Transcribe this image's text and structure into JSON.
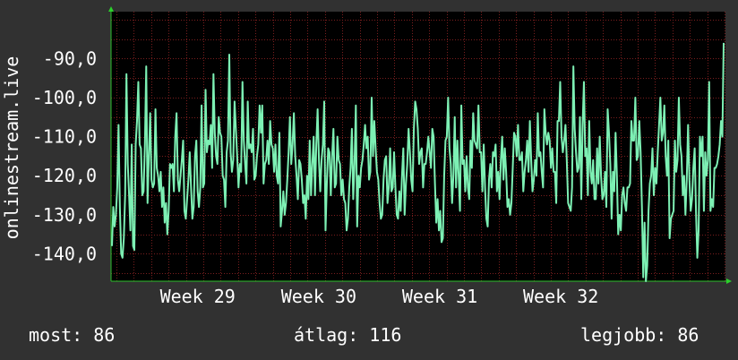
{
  "chart_data": {
    "type": "line",
    "ylabel": "onlinestream.live",
    "ylim": [
      -147,
      -78
    ],
    "yticks": [
      -90,
      -100,
      -110,
      -120,
      -130,
      -140
    ],
    "ytick_labels": [
      "-90,0",
      "-100,0",
      "-110,0",
      "-120,0",
      "-130,0",
      "-140,0"
    ],
    "xlim": [
      0,
      100
    ],
    "xticks": [
      {
        "x": 14.1,
        "label": "Week 29"
      },
      {
        "x": 33.8,
        "label": "Week 30"
      },
      {
        "x": 53.5,
        "label": "Week 31"
      },
      {
        "x": 73.2,
        "label": "Week 32"
      }
    ],
    "grid": true,
    "series": [
      {
        "color": "#7df0b4",
        "values": [
          -138,
          -128,
          -133,
          -130,
          -123,
          -107,
          -128,
          -140,
          -141,
          -136,
          -125,
          -94,
          -117,
          -125,
          -134,
          -112,
          -138,
          -139,
          -112,
          -106,
          -96,
          -112,
          -113,
          -125,
          -124,
          -112,
          -92,
          -127,
          -115,
          -104,
          -121,
          -123,
          -122,
          -103,
          -118,
          -120,
          -124,
          -119,
          -128,
          -123,
          -132,
          -127,
          -135,
          -129,
          -117,
          -118,
          -117,
          -124,
          -110,
          -104,
          -121,
          -124,
          -120,
          -116,
          -111,
          -129,
          -131,
          -126,
          -121,
          -114,
          -123,
          -131,
          -128,
          -115,
          -111,
          -124,
          -128,
          -123,
          -102,
          -123,
          -122,
          -98,
          -114,
          -111,
          -112,
          -107,
          -118,
          -94,
          -109,
          -115,
          -117,
          -105,
          -109,
          -110,
          -120,
          -121,
          -128,
          -114,
          -111,
          -89,
          -114,
          -119,
          -116,
          -101,
          -108,
          -115,
          -123,
          -117,
          -119,
          -96,
          -111,
          -117,
          -122,
          -101,
          -113,
          -112,
          -114,
          -108,
          -121,
          -120,
          -115,
          -112,
          -102,
          -109,
          -102,
          -122,
          -117,
          -116,
          -111,
          -117,
          -106,
          -112,
          -113,
          -119,
          -112,
          -120,
          -122,
          -109,
          -133,
          -129,
          -124,
          -130,
          -127,
          -121,
          -114,
          -105,
          -117,
          -112,
          -104,
          -115,
          -120,
          -126,
          -116,
          -117,
          -121,
          -127,
          -125,
          -131,
          -120,
          -126,
          -111,
          -125,
          -117,
          -110,
          -125,
          -112,
          -103,
          -116,
          -124,
          -116,
          -112,
          -101,
          -134,
          -122,
          -113,
          -114,
          -125,
          -115,
          -108,
          -123,
          -122,
          -110,
          -116,
          -117,
          -125,
          -121,
          -126,
          -127,
          -134,
          -131,
          -123,
          -118,
          -108,
          -126,
          -117,
          -102,
          -133,
          -120,
          -123,
          -118,
          -116,
          -112,
          -107,
          -113,
          -110,
          -121,
          -119,
          -100,
          -115,
          -106,
          -113,
          -119,
          -121,
          -127,
          -131,
          -130,
          -121,
          -116,
          -115,
          -127,
          -123,
          -113,
          -124,
          -123,
          -114,
          -123,
          -130,
          -131,
          -124,
          -129,
          -120,
          -113,
          -130,
          -122,
          -117,
          -108,
          -114,
          -121,
          -124,
          -108,
          -101,
          -103,
          -108,
          -117,
          -114,
          -113,
          -123,
          -117,
          -117,
          -114,
          -110,
          -114,
          -118,
          -108,
          -110,
          -122,
          -132,
          -126,
          -134,
          -129,
          -137,
          -136,
          -120,
          -111,
          -110,
          -100,
          -113,
          -117,
          -127,
          -120,
          -105,
          -123,
          -111,
          -120,
          -129,
          -102,
          -117,
          -116,
          -124,
          -115,
          -123,
          -126,
          -111,
          -118,
          -104,
          -111,
          -112,
          -113,
          -102,
          -114,
          -114,
          -124,
          -112,
          -123,
          -131,
          -133,
          -121,
          -117,
          -123,
          -114,
          -115,
          -112,
          -124,
          -119,
          -126,
          -116,
          -110,
          -121,
          -113,
          -119,
          -128,
          -126,
          -130,
          -127,
          -118,
          -109,
          -110,
          -115,
          -107,
          -116,
          -116,
          -114,
          -124,
          -119,
          -116,
          -111,
          -119,
          -106,
          -116,
          -124,
          -121,
          -116,
          -120,
          -104,
          -115,
          -114,
          -119,
          -123,
          -103,
          -109,
          -112,
          -109,
          -111,
          -118,
          -113,
          -119,
          -119,
          -127,
          -106,
          -106,
          -96,
          -110,
          -114,
          -111,
          -107,
          -116,
          -127,
          -128,
          -129,
          -123,
          -92,
          -108,
          -114,
          -119,
          -118,
          -105,
          -126,
          -107,
          -96,
          -115,
          -113,
          -125,
          -106,
          -119,
          -122,
          -116,
          -126,
          -126,
          -113,
          -122,
          -110,
          -120,
          -126,
          -125,
          -119,
          -128,
          -103,
          -109,
          -117,
          -131,
          -119,
          -124,
          -109,
          -120,
          -135,
          -130,
          -134,
          -125,
          -123,
          -127,
          -129,
          -123,
          -123,
          -122,
          -106,
          -111,
          -111,
          -100,
          -116,
          -115,
          -106,
          -114,
          -128,
          -146,
          -132,
          -147,
          -143,
          -129,
          -122,
          -120,
          -113,
          -125,
          -118,
          -122,
          -114,
          -107,
          -100,
          -111,
          -109,
          -102,
          -115,
          -120,
          -111,
          -136,
          -131,
          -130,
          -129,
          -111,
          -119,
          -116,
          -100,
          -112,
          -115,
          -125,
          -120,
          -130,
          -121,
          -107,
          -121,
          -129,
          -126,
          -118,
          -113,
          -129,
          -141,
          -134,
          -110,
          -115,
          -110,
          -129,
          -114,
          -120,
          -116,
          -96,
          -129,
          -126,
          -128,
          -118,
          -118,
          -117,
          -115,
          -112,
          -106,
          -110,
          -86
        ]
      }
    ]
  },
  "footer": {
    "current": "most: 86",
    "average": "átlag: 116",
    "best": "legjobb: 86"
  }
}
